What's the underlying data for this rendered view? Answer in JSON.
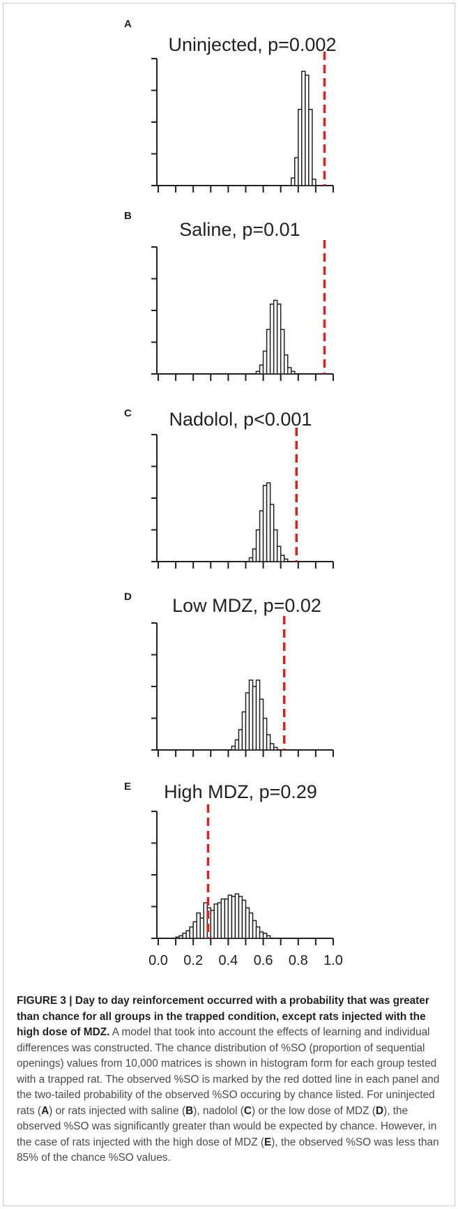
{
  "panels": [
    {
      "letter": "A",
      "title": "Uninjected, p=0.002"
    },
    {
      "letter": "B",
      "title": "Saline, p=0.01"
    },
    {
      "letter": "C",
      "title": "Nadolol, p<0.001"
    },
    {
      "letter": "D",
      "title": "Low MDZ, p=0.02"
    },
    {
      "letter": "E",
      "title": "High MDZ, p=0.29"
    }
  ],
  "caption": {
    "label": "FIGURE 3 | Day to day reinforcement occurred with a probability that was greater than chance for all groups in the trapped condition, except rats injected with the high dose of MDZ.",
    "body_1": " A model that took into account the effects of learning and individual differences was constructed. The chance distribution of %SO (proportion of sequential openings) values from 10,000 matrices is shown in histogram form for each group tested with a trapped rat. The observed %SO is marked by the red dotted line in each panel and the two-tailed probability of the observed %SO occuring by chance listed. For uninjected rats (",
    "ref_a": "A",
    "body_2": ") or rats injected with saline (",
    "ref_b": "B",
    "body_3": "), nadolol (",
    "ref_c": "C",
    "body_4": ") or the low dose of MDZ (",
    "ref_d": "D",
    "body_5": "), the observed %SO was significantly greater than would be expected by chance. However, in the case of rats injected with the high dose of MDZ (",
    "ref_e": "E",
    "body_6": "), the observed %SO was less than 85% of the chance %SO values."
  },
  "chart_data": [
    {
      "type": "bar",
      "title": "Uninjected, p=0.002",
      "xlim": [
        0,
        1
      ],
      "bin_width": 0.02,
      "observed_value": 0.95,
      "bins": [
        {
          "x": 0.76,
          "y": 0.06
        },
        {
          "x": 0.78,
          "y": 0.22
        },
        {
          "x": 0.8,
          "y": 0.6
        },
        {
          "x": 0.82,
          "y": 0.9
        },
        {
          "x": 0.84,
          "y": 0.87
        },
        {
          "x": 0.86,
          "y": 0.6
        },
        {
          "x": 0.88,
          "y": 0.05
        }
      ],
      "observed_line_color": "#e01e1e"
    },
    {
      "type": "bar",
      "title": "Saline, p=0.01",
      "xlim": [
        0,
        1
      ],
      "bin_width": 0.02,
      "observed_value": 0.95,
      "bins": [
        {
          "x": 0.56,
          "y": 0.02
        },
        {
          "x": 0.58,
          "y": 0.07
        },
        {
          "x": 0.6,
          "y": 0.18
        },
        {
          "x": 0.62,
          "y": 0.35
        },
        {
          "x": 0.64,
          "y": 0.55
        },
        {
          "x": 0.66,
          "y": 0.58
        },
        {
          "x": 0.68,
          "y": 0.55
        },
        {
          "x": 0.7,
          "y": 0.35
        },
        {
          "x": 0.72,
          "y": 0.15
        },
        {
          "x": 0.74,
          "y": 0.05
        },
        {
          "x": 0.76,
          "y": 0.02
        }
      ],
      "observed_line_color": "#e01e1e"
    },
    {
      "type": "bar",
      "title": "Nadolol, p<0.001",
      "xlim": [
        0,
        1
      ],
      "bin_width": 0.02,
      "observed_value": 0.79,
      "bins": [
        {
          "x": 0.52,
          "y": 0.03
        },
        {
          "x": 0.54,
          "y": 0.1
        },
        {
          "x": 0.56,
          "y": 0.25
        },
        {
          "x": 0.58,
          "y": 0.4
        },
        {
          "x": 0.6,
          "y": 0.6
        },
        {
          "x": 0.62,
          "y": 0.62
        },
        {
          "x": 0.64,
          "y": 0.45
        },
        {
          "x": 0.66,
          "y": 0.25
        },
        {
          "x": 0.68,
          "y": 0.12
        },
        {
          "x": 0.7,
          "y": 0.05
        },
        {
          "x": 0.72,
          "y": 0.02
        }
      ],
      "observed_line_color": "#e01e1e"
    },
    {
      "type": "bar",
      "title": "Low MDZ, p=0.02",
      "xlim": [
        0,
        1
      ],
      "bin_width": 0.02,
      "observed_value": 0.72,
      "bins": [
        {
          "x": 0.42,
          "y": 0.03
        },
        {
          "x": 0.44,
          "y": 0.08
        },
        {
          "x": 0.46,
          "y": 0.16
        },
        {
          "x": 0.48,
          "y": 0.3
        },
        {
          "x": 0.5,
          "y": 0.45
        },
        {
          "x": 0.52,
          "y": 0.55
        },
        {
          "x": 0.54,
          "y": 0.5
        },
        {
          "x": 0.56,
          "y": 0.55
        },
        {
          "x": 0.58,
          "y": 0.4
        },
        {
          "x": 0.6,
          "y": 0.25
        },
        {
          "x": 0.62,
          "y": 0.12
        },
        {
          "x": 0.64,
          "y": 0.05
        },
        {
          "x": 0.66,
          "y": 0.02
        }
      ],
      "observed_line_color": "#e01e1e"
    },
    {
      "type": "bar",
      "title": "High MDZ, p=0.29",
      "xlim": [
        0,
        1
      ],
      "bin_width": 0.02,
      "observed_value": 0.285,
      "bins": [
        {
          "x": 0.1,
          "y": 0.01
        },
        {
          "x": 0.12,
          "y": 0.02
        },
        {
          "x": 0.14,
          "y": 0.04
        },
        {
          "x": 0.16,
          "y": 0.06
        },
        {
          "x": 0.18,
          "y": 0.09
        },
        {
          "x": 0.2,
          "y": 0.13
        },
        {
          "x": 0.22,
          "y": 0.2
        },
        {
          "x": 0.24,
          "y": 0.16
        },
        {
          "x": 0.26,
          "y": 0.28
        },
        {
          "x": 0.28,
          "y": 0.24
        },
        {
          "x": 0.3,
          "y": 0.22
        },
        {
          "x": 0.32,
          "y": 0.27
        },
        {
          "x": 0.34,
          "y": 0.28
        },
        {
          "x": 0.36,
          "y": 0.31
        },
        {
          "x": 0.38,
          "y": 0.31
        },
        {
          "x": 0.4,
          "y": 0.34
        },
        {
          "x": 0.42,
          "y": 0.33
        },
        {
          "x": 0.44,
          "y": 0.35
        },
        {
          "x": 0.46,
          "y": 0.33
        },
        {
          "x": 0.48,
          "y": 0.3
        },
        {
          "x": 0.5,
          "y": 0.24
        },
        {
          "x": 0.52,
          "y": 0.2
        },
        {
          "x": 0.54,
          "y": 0.14
        },
        {
          "x": 0.56,
          "y": 0.09
        },
        {
          "x": 0.58,
          "y": 0.05
        },
        {
          "x": 0.6,
          "y": 0.04
        },
        {
          "x": 0.62,
          "y": 0.02
        }
      ],
      "x_tick_labels": [
        "0.0",
        "0.2",
        "0.4",
        "0.6",
        "0.8",
        "1.0"
      ],
      "observed_line_color": "#e01e1e"
    }
  ]
}
